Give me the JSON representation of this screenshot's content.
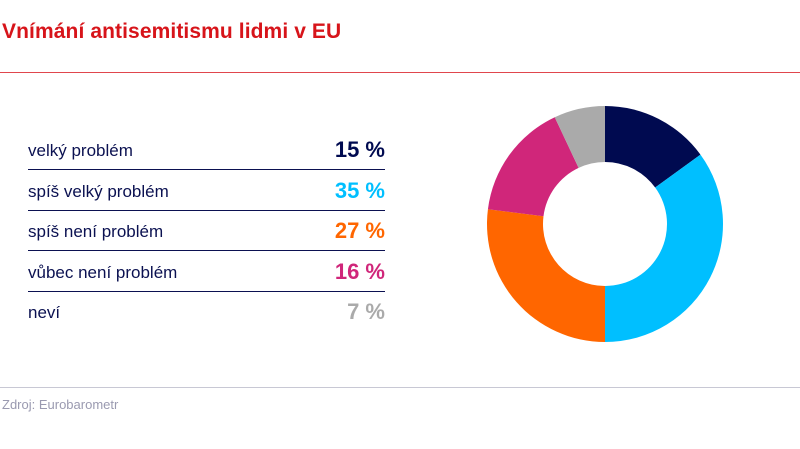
{
  "chart_data": {
    "type": "pie",
    "donut": true,
    "title": "Vnímání antisemitismu lidmi v EU",
    "categories": [
      "velký problém",
      "spíš velký problém",
      "spíš není problém",
      "vůbec není problém",
      "neví"
    ],
    "values": [
      15,
      35,
      27,
      16,
      7
    ],
    "value_labels": [
      "15 %",
      "35 %",
      "27 %",
      "16 %",
      "7 %"
    ],
    "colors": [
      "#000a50",
      "#00bfff",
      "#ff6600",
      "#d0267a",
      "#aaaaaa"
    ],
    "legend_placement": "left"
  },
  "source": "Zdroj: Eurobarometr"
}
